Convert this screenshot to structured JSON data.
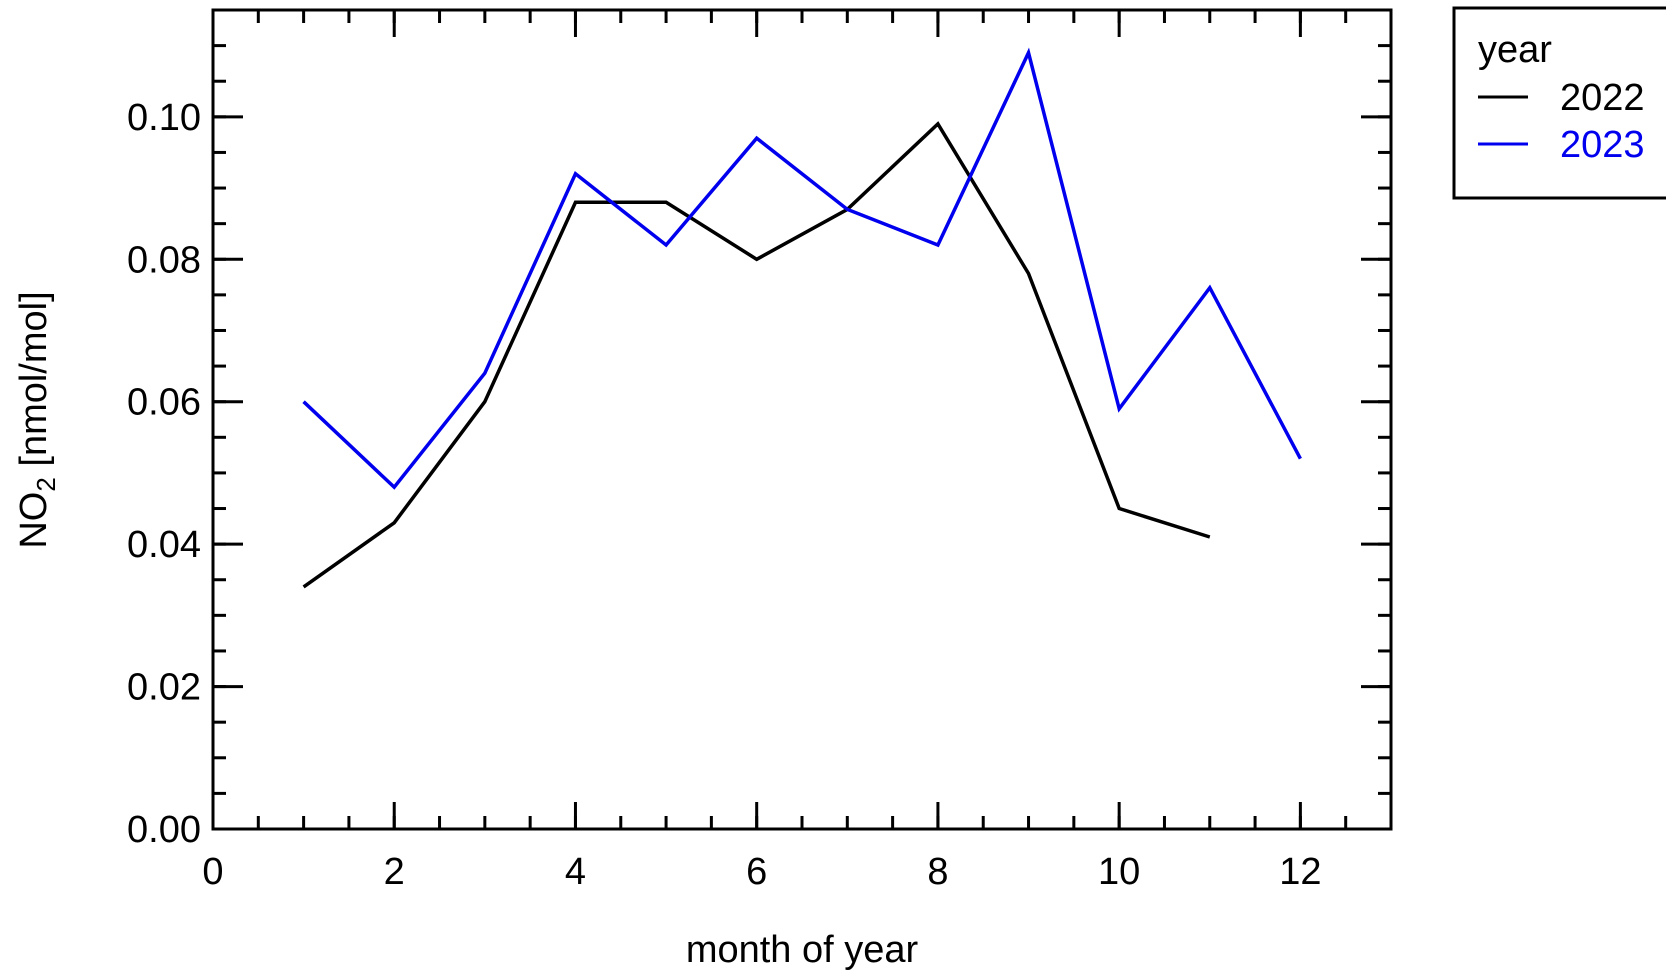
{
  "chart_data": {
    "type": "line",
    "xlabel": "month of year",
    "ylabel_main": "NO",
    "ylabel_sub": "2",
    "ylabel_unit": " [nmol/mol]",
    "xlim": [
      0,
      13
    ],
    "ylim": [
      0,
      0.115
    ],
    "x_ticks": [
      0,
      2,
      4,
      6,
      8,
      10,
      12
    ],
    "x_tick_labels": [
      "0",
      "2",
      "4",
      "6",
      "8",
      "10",
      "12"
    ],
    "x_minor_step": 0.5,
    "y_ticks": [
      0.0,
      0.02,
      0.04,
      0.06,
      0.08,
      0.1
    ],
    "y_tick_labels": [
      "0.00",
      "0.02",
      "0.04",
      "0.06",
      "0.08",
      "0.10"
    ],
    "y_minor_step": 0.005,
    "grid": false,
    "legend": {
      "title": "year",
      "placement": "outside-top-right"
    },
    "series": [
      {
        "name": "2022",
        "color": "#000000",
        "x": [
          1,
          2,
          3,
          4,
          5,
          6,
          7,
          8,
          9,
          10,
          11
        ],
        "y": [
          0.034,
          0.043,
          0.06,
          0.088,
          0.088,
          0.08,
          0.087,
          0.099,
          0.078,
          0.045,
          0.041
        ]
      },
      {
        "name": "2023",
        "color": "#0000ee",
        "x": [
          1,
          2,
          3,
          4,
          5,
          6,
          7,
          8,
          9,
          10,
          11,
          12
        ],
        "y": [
          0.06,
          0.048,
          0.064,
          0.092,
          0.082,
          0.097,
          0.087,
          0.082,
          0.109,
          0.059,
          0.076,
          0.052
        ]
      }
    ]
  }
}
